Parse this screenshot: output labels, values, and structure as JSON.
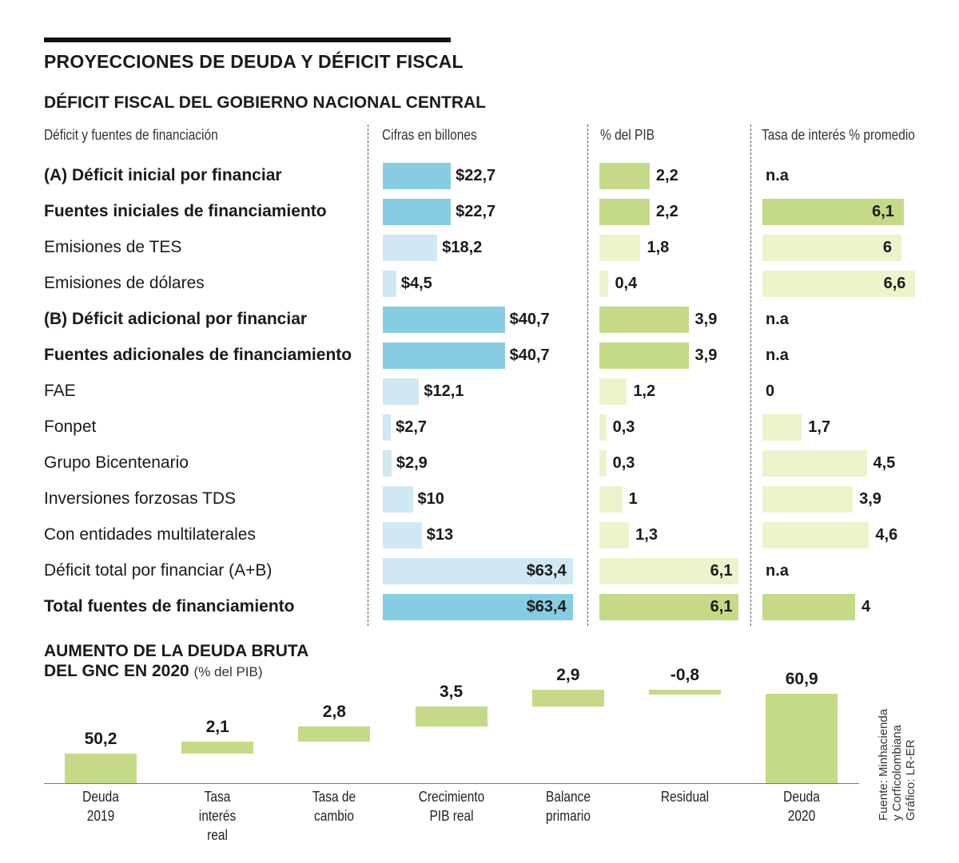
{
  "title": "PROYECCIONES DE DEUDA Y DÉFICIT FISCAL",
  "subtitle": "DÉFICIT FISCAL DEL GOBIERNO NACIONAL CENTRAL",
  "column_headers": {
    "label": "Déficit y fuentes de financiación",
    "amount": "Cifras en billones",
    "pib": "% del PIB",
    "rate": "Tasa de interés % promedio"
  },
  "colors": {
    "blue": "#86cde3",
    "light_blue": "#cfe8f3",
    "green": "#c4da86",
    "light_green": "#eef3cc"
  },
  "chart_data": [
    {
      "type": "table",
      "title": "DÉFICIT FISCAL DEL GOBIERNO NACIONAL CENTRAL",
      "columns": [
        "Déficit y fuentes de financiación",
        "Cifras en billones",
        "% del PIB",
        "Tasa de interés % promedio"
      ],
      "rows": [
        {
          "label": "(A) Déficit inicial por financiar",
          "bold": true,
          "amount": 22.7,
          "amount_text": "$22,7",
          "pib": 2.2,
          "pib_text": "2,2",
          "rate": null,
          "rate_text": "n.a"
        },
        {
          "label": "Fuentes iniciales de financiamiento",
          "bold": true,
          "amount": 22.7,
          "amount_text": "$22,7",
          "pib": 2.2,
          "pib_text": "2,2",
          "rate": 6.1,
          "rate_text": "6,1"
        },
        {
          "label": "Emisiones de TES",
          "bold": false,
          "amount": 18.2,
          "amount_text": "$18,2",
          "pib": 1.8,
          "pib_text": "1,8",
          "rate": 6,
          "rate_text": "6"
        },
        {
          "label": "Emisiones de dólares",
          "bold": false,
          "amount": 4.5,
          "amount_text": "$4,5",
          "pib": 0.4,
          "pib_text": "0,4",
          "rate": 6.6,
          "rate_text": "6,6"
        },
        {
          "label": "(B) Déficit adicional por financiar",
          "bold": true,
          "amount": 40.7,
          "amount_text": "$40,7",
          "pib": 3.9,
          "pib_text": "3,9",
          "rate": null,
          "rate_text": "n.a"
        },
        {
          "label": "Fuentes adicionales de financiamiento",
          "bold": true,
          "amount": 40.7,
          "amount_text": "$40,7",
          "pib": 3.9,
          "pib_text": "3,9",
          "rate": null,
          "rate_text": "n.a"
        },
        {
          "label": "FAE",
          "bold": false,
          "amount": 12.1,
          "amount_text": "$12,1",
          "pib": 1.2,
          "pib_text": "1,2",
          "rate": 0,
          "rate_text": "0"
        },
        {
          "label": "Fonpet",
          "bold": false,
          "amount": 2.7,
          "amount_text": "$2,7",
          "pib": 0.3,
          "pib_text": "0,3",
          "rate": 1.7,
          "rate_text": "1,7"
        },
        {
          "label": "Grupo Bicentenario",
          "bold": false,
          "amount": 2.9,
          "amount_text": "$2,9",
          "pib": 0.3,
          "pib_text": "0,3",
          "rate": 4.5,
          "rate_text": "4,5"
        },
        {
          "label": "Inversiones forzosas TDS",
          "bold": false,
          "amount": 10,
          "amount_text": "$10",
          "pib": 1,
          "pib_text": "1",
          "rate": 3.9,
          "rate_text": "3,9"
        },
        {
          "label": "Con entidades multilaterales",
          "bold": false,
          "amount": 13,
          "amount_text": "$13",
          "pib": 1.3,
          "pib_text": "1,3",
          "rate": 4.6,
          "rate_text": "4,6"
        },
        {
          "label": "Déficit total por financiar (A+B)",
          "bold": false,
          "amount": 63.4,
          "amount_text": "$63,4",
          "pib": 6.1,
          "pib_text": "6,1",
          "rate": null,
          "rate_text": "n.a"
        },
        {
          "label": "Total fuentes de financiamiento",
          "bold": true,
          "amount": 63.4,
          "amount_text": "$63,4",
          "pib": 6.1,
          "pib_text": "6,1",
          "rate": 4,
          "rate_text": "4"
        }
      ]
    },
    {
      "type": "bar",
      "subtype": "waterfall",
      "title": "AUMENTO DE LA DEUDA BRUTA DEL GNC EN 2020",
      "unit": "(% del PIB)",
      "steps": [
        {
          "label": "Deuda 2019",
          "value": 50.2,
          "value_text": "50,2",
          "kind": "total"
        },
        {
          "label": "Tasa interés real",
          "value": 2.1,
          "value_text": "2,1",
          "kind": "delta"
        },
        {
          "label": "Tasa de cambio",
          "value": 2.8,
          "value_text": "2,8",
          "kind": "delta"
        },
        {
          "label": "Crecimiento PIB real",
          "value": 3.5,
          "value_text": "3,5",
          "kind": "delta"
        },
        {
          "label": "Balance primario",
          "value": 2.9,
          "value_text": "2,9",
          "kind": "delta"
        },
        {
          "label": "Residual",
          "value": -0.8,
          "value_text": "-0,8",
          "kind": "delta"
        },
        {
          "label": "Deuda 2020",
          "value": 60.9,
          "value_text": "60,9",
          "kind": "total"
        }
      ]
    }
  ],
  "source": [
    "Fuente: Minhacienda",
    "y Corficolombiana",
    "Gráfico: LR-ER"
  ]
}
